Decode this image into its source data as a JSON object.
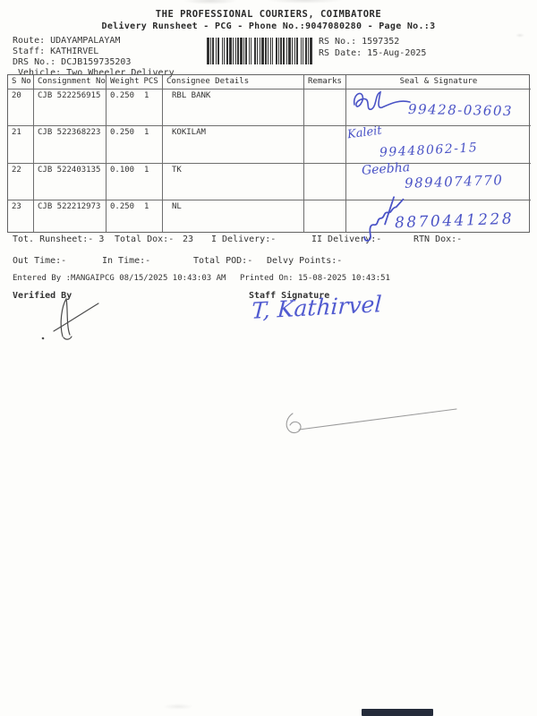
{
  "header": {
    "title": "THE PROFESSIONAL COURIERS, COIMBATORE",
    "subtitle": "Delivery Runsheet - PCG - Phone No.:9047080280 - Page No.:3",
    "route": "Route: UDAYAMPALAYAM",
    "staff": "Staff: KATHIRVEL",
    "drs_no": "DRS No.: DCJB159735203",
    "vehicle": "Vehicle: Two Wheeler Delivery",
    "rs_no": "RS No.: 1597352",
    "rs_date": "RS Date: 15-Aug-2025"
  },
  "table": {
    "headers": {
      "sno": "S No",
      "consignment": "Consignment No",
      "weight": "Weight",
      "pcs": "PCS",
      "consignee": "Consignee Details",
      "remarks": "Remarks",
      "seal": "Seal & Signature"
    },
    "rows": [
      {
        "sno": "20",
        "consignment": "CJB 522256915",
        "weight": "0.250",
        "pcs": "1",
        "consignee": "RBL BANK",
        "remarks": "",
        "seal_name": "",
        "seal_number": "99428-03603"
      },
      {
        "sno": "21",
        "consignment": "CJB 522368223",
        "weight": "0.250",
        "pcs": "1",
        "consignee": "KOKILAM",
        "remarks": "",
        "seal_name": "Kaleit",
        "seal_number": "99448062-15"
      },
      {
        "sno": "22",
        "consignment": "CJB 522403135",
        "weight": "0.100",
        "pcs": "1",
        "consignee": "TK",
        "remarks": "",
        "seal_name": "Geebha",
        "seal_number": "9894074770"
      },
      {
        "sno": "23",
        "consignment": "CJB 522212973",
        "weight": "0.250",
        "pcs": "1",
        "consignee": "NL",
        "remarks": "",
        "seal_name": "",
        "seal_number": "8870441228"
      }
    ]
  },
  "totals": {
    "runsheet": "Tot. Runsheet:- 3",
    "total_dox_label": "Total Dox:-",
    "total_dox_value": "23",
    "i_delivery": "I Delivery:-",
    "ii_delivery": "II Delivery:-",
    "rtn_dox": "RTN Dox:-"
  },
  "times": {
    "out_time": "Out Time:-",
    "in_time": "In Time:-",
    "total_pod": "Total POD:-",
    "delvy_points": "Delvy Points:-"
  },
  "footer": {
    "entered_by": "Entered By :MANGAIPCG 08/15/2025 10:43:03 AM",
    "printed_on": "Printed On: 15-08-2025 10:43:51",
    "verified_by_label": "Verified By",
    "staff_signature_label": "Staff Signature",
    "staff_signature_text": "T, Kathirvel"
  },
  "colors": {
    "ink_blue": "#4a53c6",
    "text": "#3a3a3a",
    "border": "#6e6e6e"
  }
}
